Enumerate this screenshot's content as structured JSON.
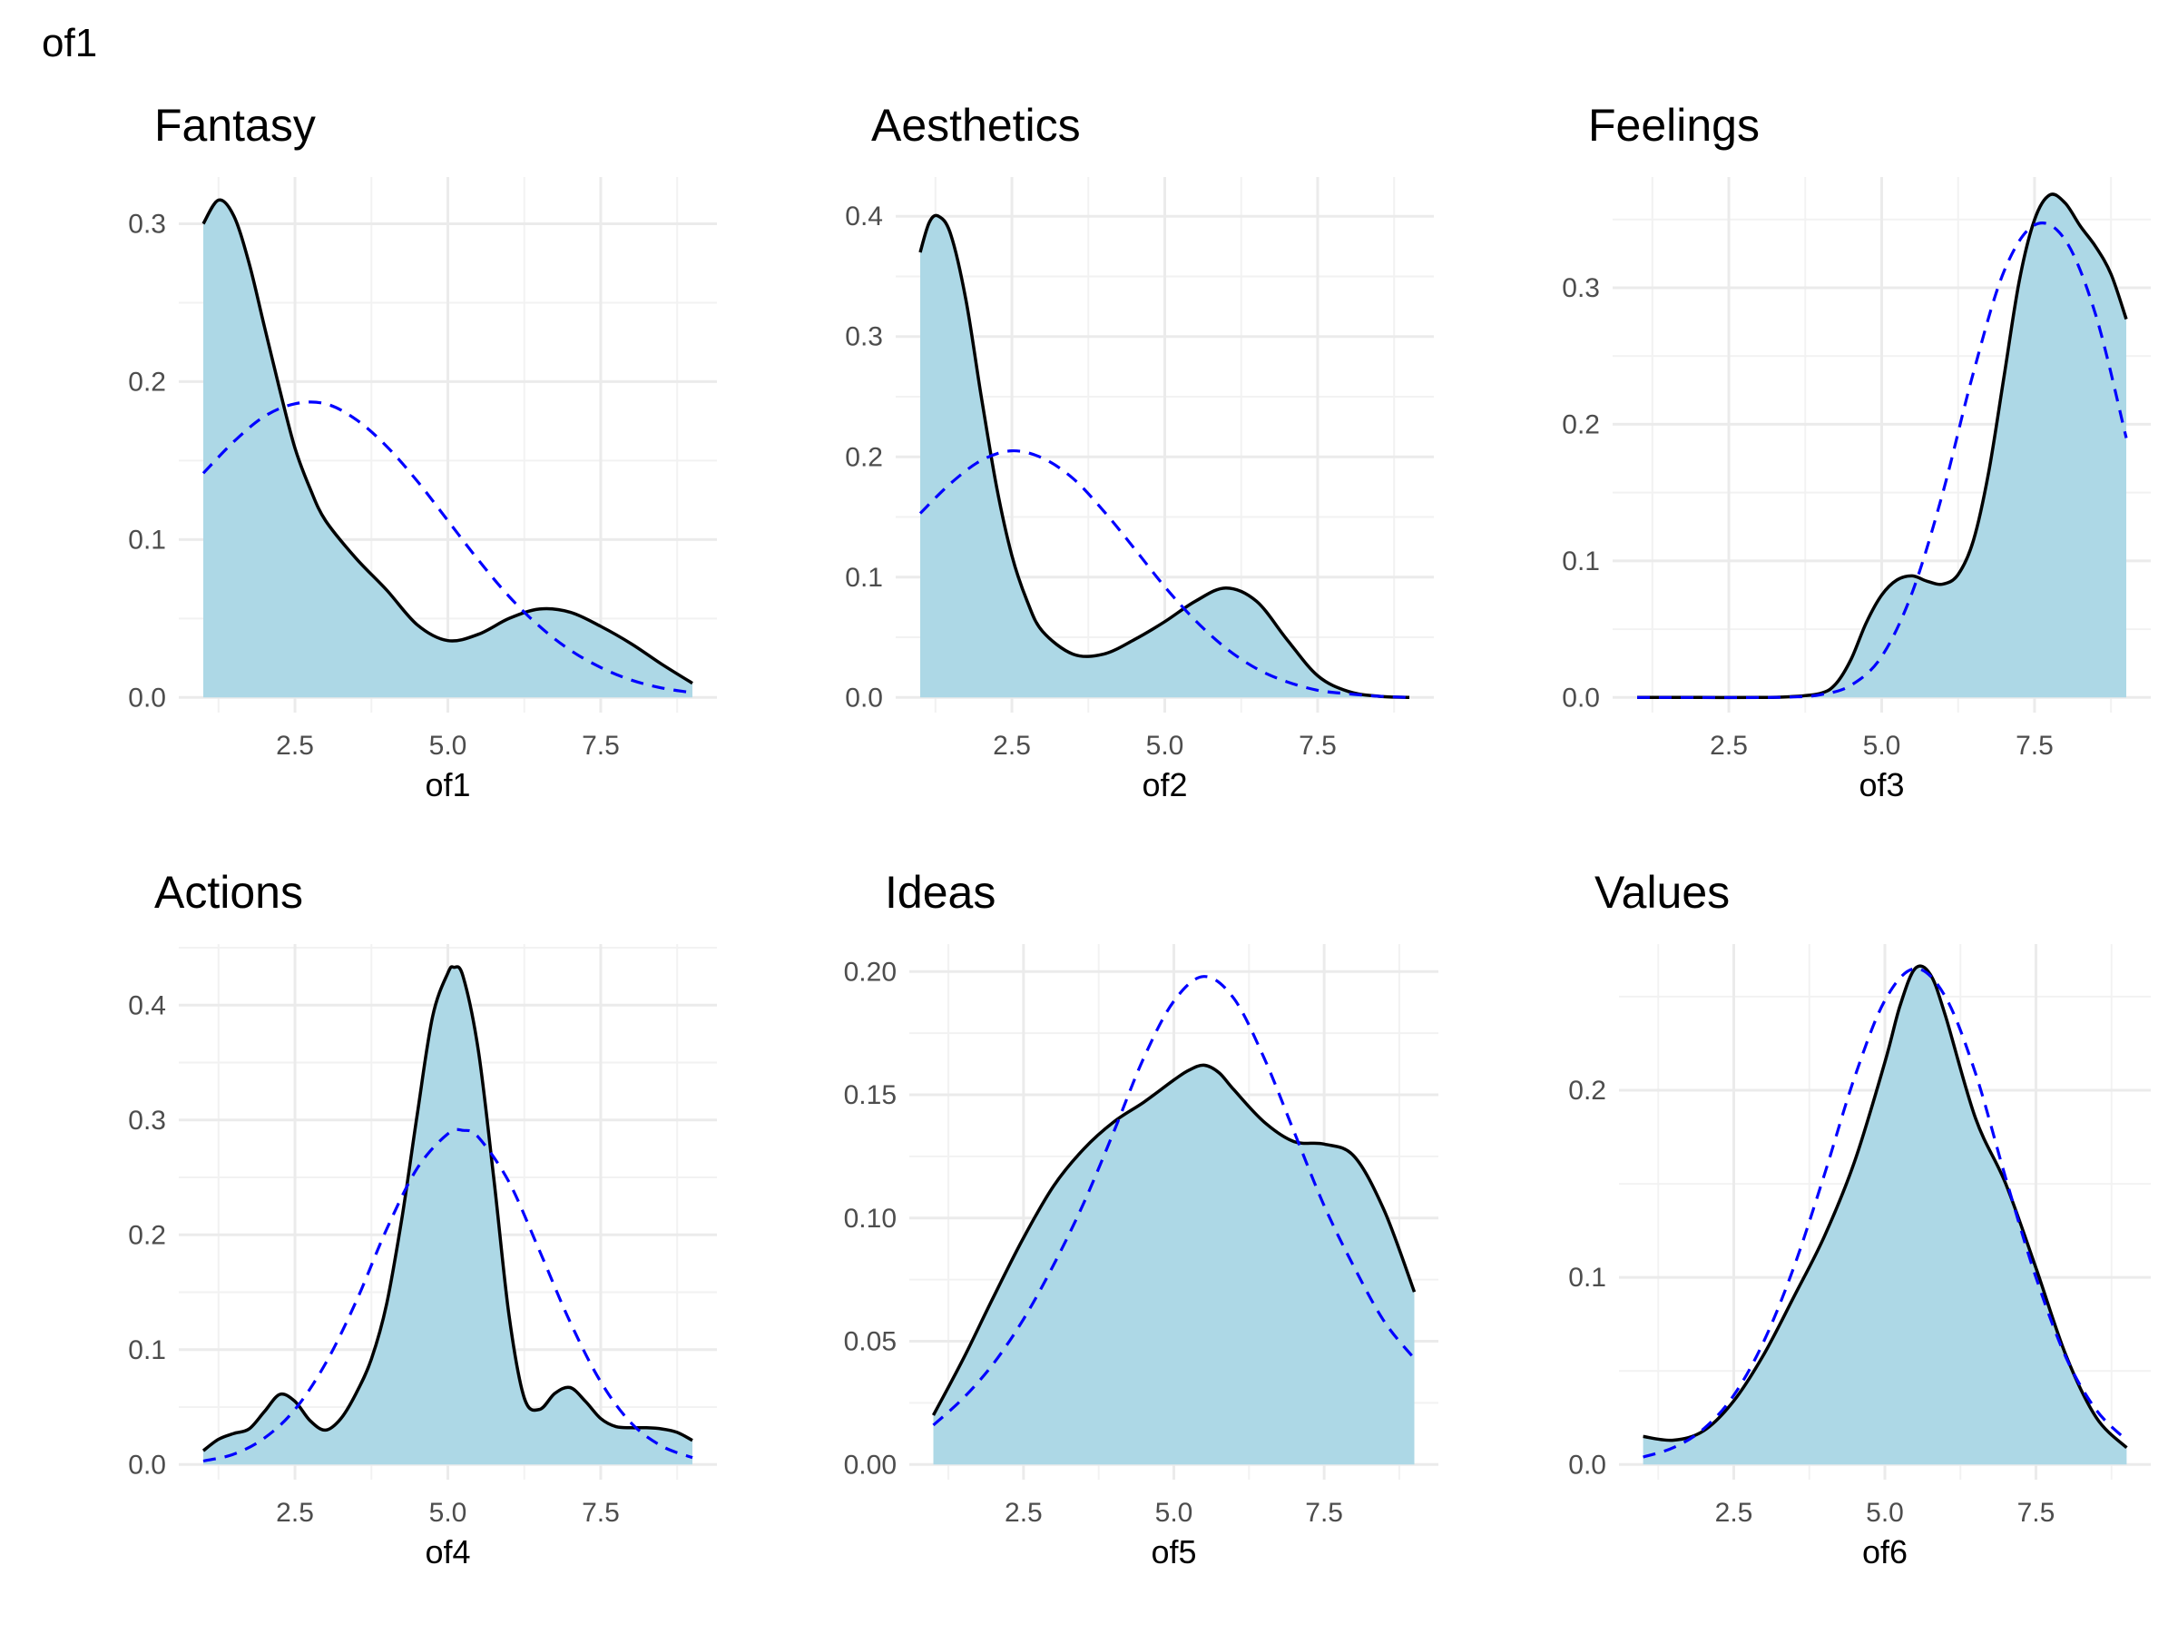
{
  "page_title": "of1",
  "colors": {
    "fill": "#add8e6",
    "density_line": "#000000",
    "normal_line": "#0000ff"
  },
  "chart_data": [
    {
      "type": "area",
      "title": "Fantasy",
      "xlabel": "of1",
      "ylabel": "",
      "xlim": [
        1,
        9
      ],
      "ylim": [
        0,
        0.32
      ],
      "x_ticks": [
        2.5,
        5.0,
        7.5
      ],
      "x_tick_labels": [
        "2.5",
        "5.0",
        "7.5"
      ],
      "y_ticks": [
        0,
        0.1,
        0.2,
        0.3
      ],
      "y_tick_labels": [
        "0.0",
        "0.1",
        "0.2",
        "0.3"
      ],
      "grid": true,
      "series": [
        {
          "style": "solid-filled",
          "x": [
            1,
            1.25,
            1.5,
            1.75,
            2,
            2.25,
            2.5,
            2.75,
            3,
            3.5,
            4,
            4.5,
            5,
            5.5,
            6,
            6.5,
            7,
            7.5,
            8,
            8.5,
            9
          ],
          "y": [
            0.3,
            0.315,
            0.305,
            0.275,
            0.235,
            0.195,
            0.158,
            0.132,
            0.112,
            0.088,
            0.068,
            0.046,
            0.036,
            0.04,
            0.05,
            0.056,
            0.054,
            0.045,
            0.034,
            0.021,
            0.009
          ]
        },
        {
          "style": "dashed",
          "x": [
            1,
            1.5,
            2,
            2.5,
            3,
            3.5,
            4,
            4.5,
            5,
            5.5,
            6,
            6.5,
            7,
            7.5,
            8,
            8.5,
            9
          ],
          "y": [
            0.142,
            0.162,
            0.178,
            0.186,
            0.186,
            0.176,
            0.159,
            0.137,
            0.112,
            0.087,
            0.064,
            0.045,
            0.03,
            0.019,
            0.011,
            0.006,
            0.003
          ]
        }
      ]
    },
    {
      "type": "area",
      "title": "Aesthetics",
      "xlabel": "of2",
      "ylabel": "",
      "xlim": [
        1,
        9
      ],
      "ylim": [
        0,
        0.42
      ],
      "x_ticks": [
        2.5,
        5.0,
        7.5
      ],
      "x_tick_labels": [
        "2.5",
        "5.0",
        "7.5"
      ],
      "y_ticks": [
        0,
        0.1,
        0.2,
        0.3,
        0.4
      ],
      "y_tick_labels": [
        "0.0",
        "0.1",
        "0.2",
        "0.3",
        "0.4"
      ],
      "grid": true,
      "series": [
        {
          "style": "solid-filled",
          "x": [
            1,
            1.15,
            1.3,
            1.5,
            1.75,
            2,
            2.25,
            2.5,
            2.75,
            3,
            3.5,
            4,
            4.5,
            5,
            5.5,
            6,
            6.5,
            7,
            7.5,
            8,
            8.5,
            9
          ],
          "y": [
            0.37,
            0.395,
            0.4,
            0.385,
            0.33,
            0.25,
            0.175,
            0.118,
            0.08,
            0.055,
            0.036,
            0.036,
            0.048,
            0.063,
            0.08,
            0.091,
            0.08,
            0.048,
            0.018,
            0.005,
            0.001,
            0.0
          ]
        },
        {
          "style": "dashed",
          "x": [
            1,
            1.5,
            2,
            2.5,
            3,
            3.5,
            4,
            4.5,
            5,
            5.5,
            6,
            6.5,
            7,
            7.5,
            8,
            8.5,
            9
          ],
          "y": [
            0.153,
            0.178,
            0.197,
            0.205,
            0.199,
            0.182,
            0.155,
            0.124,
            0.092,
            0.064,
            0.041,
            0.024,
            0.013,
            0.006,
            0.003,
            0.001,
            0.0
          ]
        }
      ]
    },
    {
      "type": "area",
      "title": "Feelings",
      "xlabel": "of3",
      "ylabel": "",
      "xlim": [
        1,
        9
      ],
      "ylim": [
        0,
        0.37
      ],
      "x_ticks": [
        2.5,
        5.0,
        7.5
      ],
      "x_tick_labels": [
        "2.5",
        "5.0",
        "7.5"
      ],
      "y_ticks": [
        0,
        0.1,
        0.2,
        0.3
      ],
      "y_tick_labels": [
        "0.0",
        "0.1",
        "0.2",
        "0.3"
      ],
      "grid": true,
      "series": [
        {
          "style": "solid-filled",
          "x": [
            1,
            2,
            3,
            3.5,
            4,
            4.25,
            4.5,
            4.75,
            5,
            5.25,
            5.5,
            5.75,
            6,
            6.25,
            6.5,
            6.75,
            7,
            7.25,
            7.5,
            7.75,
            8,
            8.25,
            8.5,
            8.75,
            9
          ],
          "y": [
            0.0,
            0.0,
            0.0,
            0.0005,
            0.003,
            0.01,
            0.028,
            0.055,
            0.075,
            0.086,
            0.089,
            0.085,
            0.083,
            0.09,
            0.115,
            0.165,
            0.235,
            0.305,
            0.35,
            0.368,
            0.362,
            0.345,
            0.33,
            0.31,
            0.277
          ]
        },
        {
          "style": "dashed",
          "x": [
            1,
            2,
            3,
            3.5,
            4,
            4.5,
            5,
            5.5,
            6,
            6.5,
            7,
            7.5,
            8,
            8.5,
            9
          ],
          "y": [
            0.0,
            0.0,
            0.0,
            0.0003,
            0.002,
            0.009,
            0.03,
            0.077,
            0.15,
            0.238,
            0.312,
            0.346,
            0.335,
            0.28,
            0.19
          ]
        }
      ]
    },
    {
      "type": "area",
      "title": "Actions",
      "xlabel": "of4",
      "ylabel": "",
      "xlim": [
        1,
        9
      ],
      "ylim": [
        0,
        0.44
      ],
      "x_ticks": [
        2.5,
        5.0,
        7.5
      ],
      "x_tick_labels": [
        "2.5",
        "5.0",
        "7.5"
      ],
      "y_ticks": [
        0,
        0.1,
        0.2,
        0.3,
        0.4
      ],
      "y_tick_labels": [
        "0.0",
        "0.1",
        "0.2",
        "0.3",
        "0.4"
      ],
      "grid": true,
      "series": [
        {
          "style": "solid-filled",
          "x": [
            1,
            1.25,
            1.5,
            1.75,
            2,
            2.25,
            2.5,
            2.75,
            3,
            3.25,
            3.5,
            3.75,
            4,
            4.25,
            4.5,
            4.75,
            5,
            5.1,
            5.25,
            5.5,
            5.75,
            6,
            6.25,
            6.5,
            6.75,
            7,
            7.25,
            7.5,
            7.75,
            8,
            8.25,
            8.5,
            8.75,
            9
          ],
          "y": [
            0.012,
            0.022,
            0.027,
            0.031,
            0.046,
            0.061,
            0.055,
            0.038,
            0.03,
            0.04,
            0.062,
            0.092,
            0.14,
            0.215,
            0.305,
            0.39,
            0.428,
            0.433,
            0.425,
            0.36,
            0.25,
            0.13,
            0.058,
            0.048,
            0.062,
            0.067,
            0.055,
            0.04,
            0.033,
            0.032,
            0.032,
            0.031,
            0.028,
            0.021
          ]
        },
        {
          "style": "dashed",
          "x": [
            1,
            1.5,
            2,
            2.5,
            3,
            3.5,
            4,
            4.5,
            5,
            5.25,
            5.5,
            6,
            6.5,
            7,
            7.5,
            8,
            8.5,
            9
          ],
          "y": [
            0.003,
            0.009,
            0.023,
            0.048,
            0.088,
            0.142,
            0.205,
            0.258,
            0.288,
            0.291,
            0.285,
            0.246,
            0.186,
            0.124,
            0.072,
            0.036,
            0.016,
            0.006
          ]
        }
      ]
    },
    {
      "type": "area",
      "title": "Ideas",
      "xlabel": "of5",
      "ylabel": "",
      "xlim": [
        1,
        9
      ],
      "ylim": [
        0,
        0.205
      ],
      "x_ticks": [
        2.5,
        5.0,
        7.5
      ],
      "x_tick_labels": [
        "2.5",
        "5.0",
        "7.5"
      ],
      "y_ticks": [
        0,
        0.05,
        0.1,
        0.15,
        0.2
      ],
      "y_tick_labels": [
        "0.00",
        "0.05",
        "0.10",
        "0.15",
        "0.20"
      ],
      "grid": true,
      "series": [
        {
          "style": "solid-filled",
          "x": [
            1,
            1.5,
            2,
            2.5,
            3,
            3.5,
            4,
            4.5,
            5,
            5.25,
            5.5,
            5.75,
            6,
            6.5,
            7,
            7.5,
            8,
            8.5,
            9
          ],
          "y": [
            0.02,
            0.043,
            0.068,
            0.092,
            0.113,
            0.128,
            0.139,
            0.147,
            0.156,
            0.16,
            0.162,
            0.159,
            0.152,
            0.139,
            0.131,
            0.13,
            0.125,
            0.103,
            0.07
          ]
        },
        {
          "style": "dashed",
          "x": [
            1,
            1.5,
            2,
            2.5,
            3,
            3.5,
            4,
            4.5,
            5,
            5.5,
            6,
            6.5,
            7,
            7.5,
            8,
            8.5,
            9
          ],
          "y": [
            0.016,
            0.027,
            0.041,
            0.059,
            0.081,
            0.106,
            0.135,
            0.165,
            0.188,
            0.198,
            0.189,
            0.165,
            0.135,
            0.105,
            0.08,
            0.058,
            0.043
          ]
        }
      ]
    },
    {
      "type": "area",
      "title": "Values",
      "xlabel": "of6",
      "ylabel": "",
      "xlim": [
        1,
        9
      ],
      "ylim": [
        0,
        0.27
      ],
      "x_ticks": [
        2.5,
        5.0,
        7.5
      ],
      "x_tick_labels": [
        "2.5",
        "5.0",
        "7.5"
      ],
      "y_ticks": [
        0,
        0.1,
        0.2
      ],
      "y_tick_labels": [
        "0.0",
        "0.1",
        "0.2"
      ],
      "grid": true,
      "series": [
        {
          "style": "solid-filled",
          "x": [
            1,
            1.5,
            2,
            2.5,
            3,
            3.5,
            4,
            4.5,
            5,
            5.25,
            5.5,
            5.75,
            6,
            6.5,
            7,
            7.5,
            8,
            8.5,
            9
          ],
          "y": [
            0.015,
            0.013,
            0.018,
            0.034,
            0.059,
            0.09,
            0.122,
            0.162,
            0.215,
            0.245,
            0.265,
            0.262,
            0.24,
            0.185,
            0.15,
            0.105,
            0.058,
            0.025,
            0.009
          ]
        },
        {
          "style": "dashed",
          "x": [
            1,
            1.5,
            2,
            2.5,
            3,
            3.5,
            4,
            4.5,
            5,
            5.5,
            6,
            6.5,
            7,
            7.5,
            8,
            8.5,
            9
          ],
          "y": [
            0.004,
            0.009,
            0.019,
            0.037,
            0.066,
            0.106,
            0.155,
            0.207,
            0.248,
            0.265,
            0.25,
            0.209,
            0.153,
            0.1,
            0.057,
            0.029,
            0.013
          ]
        }
      ]
    }
  ]
}
